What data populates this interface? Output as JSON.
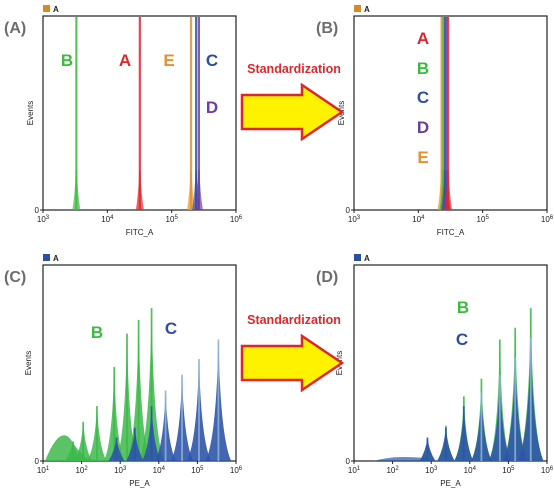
{
  "colors": {
    "A": "#e0262c",
    "B": "#3dba3f",
    "C": "#2d4fa3",
    "D": "#6c3fa1",
    "E": "#e8902a",
    "legend_orange": "#d98a1e",
    "legend_blue": "#2a4fa6",
    "arrow_fill": "#fff200",
    "arrow_stroke": "#e0262c",
    "pe_blue": "#2d55a8",
    "pe_blue_light": "#8fb3d8",
    "pe_green": "#3cb94a"
  },
  "arrows": [
    {
      "label": "Standardization"
    },
    {
      "label": "Standardization"
    }
  ],
  "chart_data": [
    {
      "type": "histogram",
      "panel_label": "(A)",
      "legend_label": "A",
      "legend_color_key": "legend_orange",
      "xlabel": "FITC_A",
      "ylabel": "Events",
      "x_scale": "log",
      "xlim": [
        1000,
        1000000
      ],
      "x_ticks": [
        {
          "base": "10",
          "exp": "3",
          "value": 1000
        },
        {
          "base": "10",
          "exp": "4",
          "value": 10000
        },
        {
          "base": "10",
          "exp": "5",
          "value": 100000
        },
        {
          "base": "10",
          "exp": "6",
          "value": 1000000
        }
      ],
      "y_ticks": [
        "0"
      ],
      "series": [
        {
          "name": "B",
          "color_key": "B",
          "peak": 3300
        },
        {
          "name": "A",
          "color_key": "A",
          "peak": 32000
        },
        {
          "name": "E",
          "color_key": "E",
          "peak": 200000
        },
        {
          "name": "C",
          "color_key": "C",
          "peak": 240000
        },
        {
          "name": "D",
          "color_key": "D",
          "peak": 265000
        }
      ],
      "annotations": [
        {
          "text": "B",
          "color_key": "B"
        },
        {
          "text": "A",
          "color_key": "A"
        },
        {
          "text": "E",
          "color_key": "E"
        },
        {
          "text": "C",
          "color_key": "C"
        },
        {
          "text": "D",
          "color_key": "D"
        }
      ]
    },
    {
      "type": "histogram",
      "panel_label": "(B)",
      "legend_label": "A",
      "legend_color_key": "legend_orange",
      "xlabel": "FITC_A",
      "ylabel": "Events",
      "x_scale": "log",
      "xlim": [
        1000,
        1000000
      ],
      "x_ticks": [
        {
          "base": "10",
          "exp": "3",
          "value": 1000
        },
        {
          "base": "10",
          "exp": "4",
          "value": 10000
        },
        {
          "base": "10",
          "exp": "5",
          "value": 100000
        },
        {
          "base": "10",
          "exp": "6",
          "value": 1000000
        }
      ],
      "y_ticks": [
        "0"
      ],
      "series": [
        {
          "name": "E",
          "color_key": "E",
          "peak": 23000
        },
        {
          "name": "B",
          "color_key": "B",
          "peak": 24500
        },
        {
          "name": "C",
          "color_key": "C",
          "peak": 26000
        },
        {
          "name": "D",
          "color_key": "D",
          "peak": 27500
        },
        {
          "name": "A",
          "color_key": "A",
          "peak": 29000
        }
      ],
      "annotations": [
        {
          "text": "A",
          "color_key": "A"
        },
        {
          "text": "B",
          "color_key": "B"
        },
        {
          "text": "C",
          "color_key": "C"
        },
        {
          "text": "D",
          "color_key": "D"
        },
        {
          "text": "E",
          "color_key": "E"
        }
      ]
    },
    {
      "type": "histogram",
      "panel_label": "(C)",
      "legend_label": "A",
      "legend_color_key": "legend_blue",
      "xlabel": "PE_A",
      "ylabel": "Events",
      "x_scale": "log",
      "xlim": [
        10,
        1000000
      ],
      "x_ticks": [
        {
          "base": "10",
          "exp": "1",
          "value": 10
        },
        {
          "base": "10",
          "exp": "2",
          "value": 100
        },
        {
          "base": "10",
          "exp": "3",
          "value": 1000
        },
        {
          "base": "10",
          "exp": "4",
          "value": 10000
        },
        {
          "base": "10",
          "exp": "5",
          "value": 100000
        },
        {
          "base": "10",
          "exp": "6",
          "value": 1000000
        }
      ],
      "y_ticks": [
        "0"
      ],
      "series": [
        {
          "name": "B",
          "color_key": "pe_green",
          "peaks": [
            {
              "x": 60,
              "h": 0.1
            },
            {
              "x": 110,
              "h": 0.2
            },
            {
              "x": 250,
              "h": 0.28
            },
            {
              "x": 700,
              "h": 0.48
            },
            {
              "x": 1500,
              "h": 0.65
            },
            {
              "x": 3000,
              "h": 0.72
            },
            {
              "x": 6500,
              "h": 0.78
            }
          ]
        },
        {
          "name": "C",
          "color_key": "pe_blue",
          "peaks": [
            {
              "x": 800,
              "h": 0.12
            },
            {
              "x": 2400,
              "h": 0.17
            },
            {
              "x": 6500,
              "h": 0.28
            },
            {
              "x": 15000,
              "h": 0.36
            },
            {
              "x": 40000,
              "h": 0.44
            },
            {
              "x": 110000,
              "h": 0.52
            },
            {
              "x": 350000,
              "h": 0.62
            }
          ]
        }
      ],
      "annotations": [
        {
          "text": "B",
          "color_key": "B"
        },
        {
          "text": "C",
          "color_key": "C"
        }
      ]
    },
    {
      "type": "histogram",
      "panel_label": "(D)",
      "legend_label": "A",
      "legend_color_key": "legend_blue",
      "xlabel": "PE_A",
      "ylabel": "Events",
      "x_scale": "log",
      "xlim": [
        10,
        1000000
      ],
      "x_ticks": [
        {
          "base": "10",
          "exp": "1",
          "value": 10
        },
        {
          "base": "10",
          "exp": "2",
          "value": 100
        },
        {
          "base": "10",
          "exp": "3",
          "value": 1000
        },
        {
          "base": "10",
          "exp": "4",
          "value": 10000
        },
        {
          "base": "10",
          "exp": "5",
          "value": 100000
        },
        {
          "base": "10",
          "exp": "6",
          "value": 1000000
        }
      ],
      "y_ticks": [
        "0"
      ],
      "series": [
        {
          "name": "B",
          "color_key": "pe_green",
          "peaks": [
            {
              "x": 800,
              "h": 0.1
            },
            {
              "x": 2400,
              "h": 0.18
            },
            {
              "x": 7000,
              "h": 0.33
            },
            {
              "x": 20000,
              "h": 0.42
            },
            {
              "x": 60000,
              "h": 0.62
            },
            {
              "x": 150000,
              "h": 0.68
            },
            {
              "x": 380000,
              "h": 0.78
            }
          ]
        },
        {
          "name": "C",
          "color_key": "pe_blue",
          "peaks": [
            {
              "x": 800,
              "h": 0.12
            },
            {
              "x": 2400,
              "h": 0.17
            },
            {
              "x": 7000,
              "h": 0.28
            },
            {
              "x": 20000,
              "h": 0.35
            },
            {
              "x": 60000,
              "h": 0.44
            },
            {
              "x": 150000,
              "h": 0.53
            },
            {
              "x": 380000,
              "h": 0.63
            }
          ]
        }
      ],
      "annotations": [
        {
          "text": "B",
          "color_key": "B"
        },
        {
          "text": "C",
          "color_key": "C"
        }
      ]
    }
  ]
}
